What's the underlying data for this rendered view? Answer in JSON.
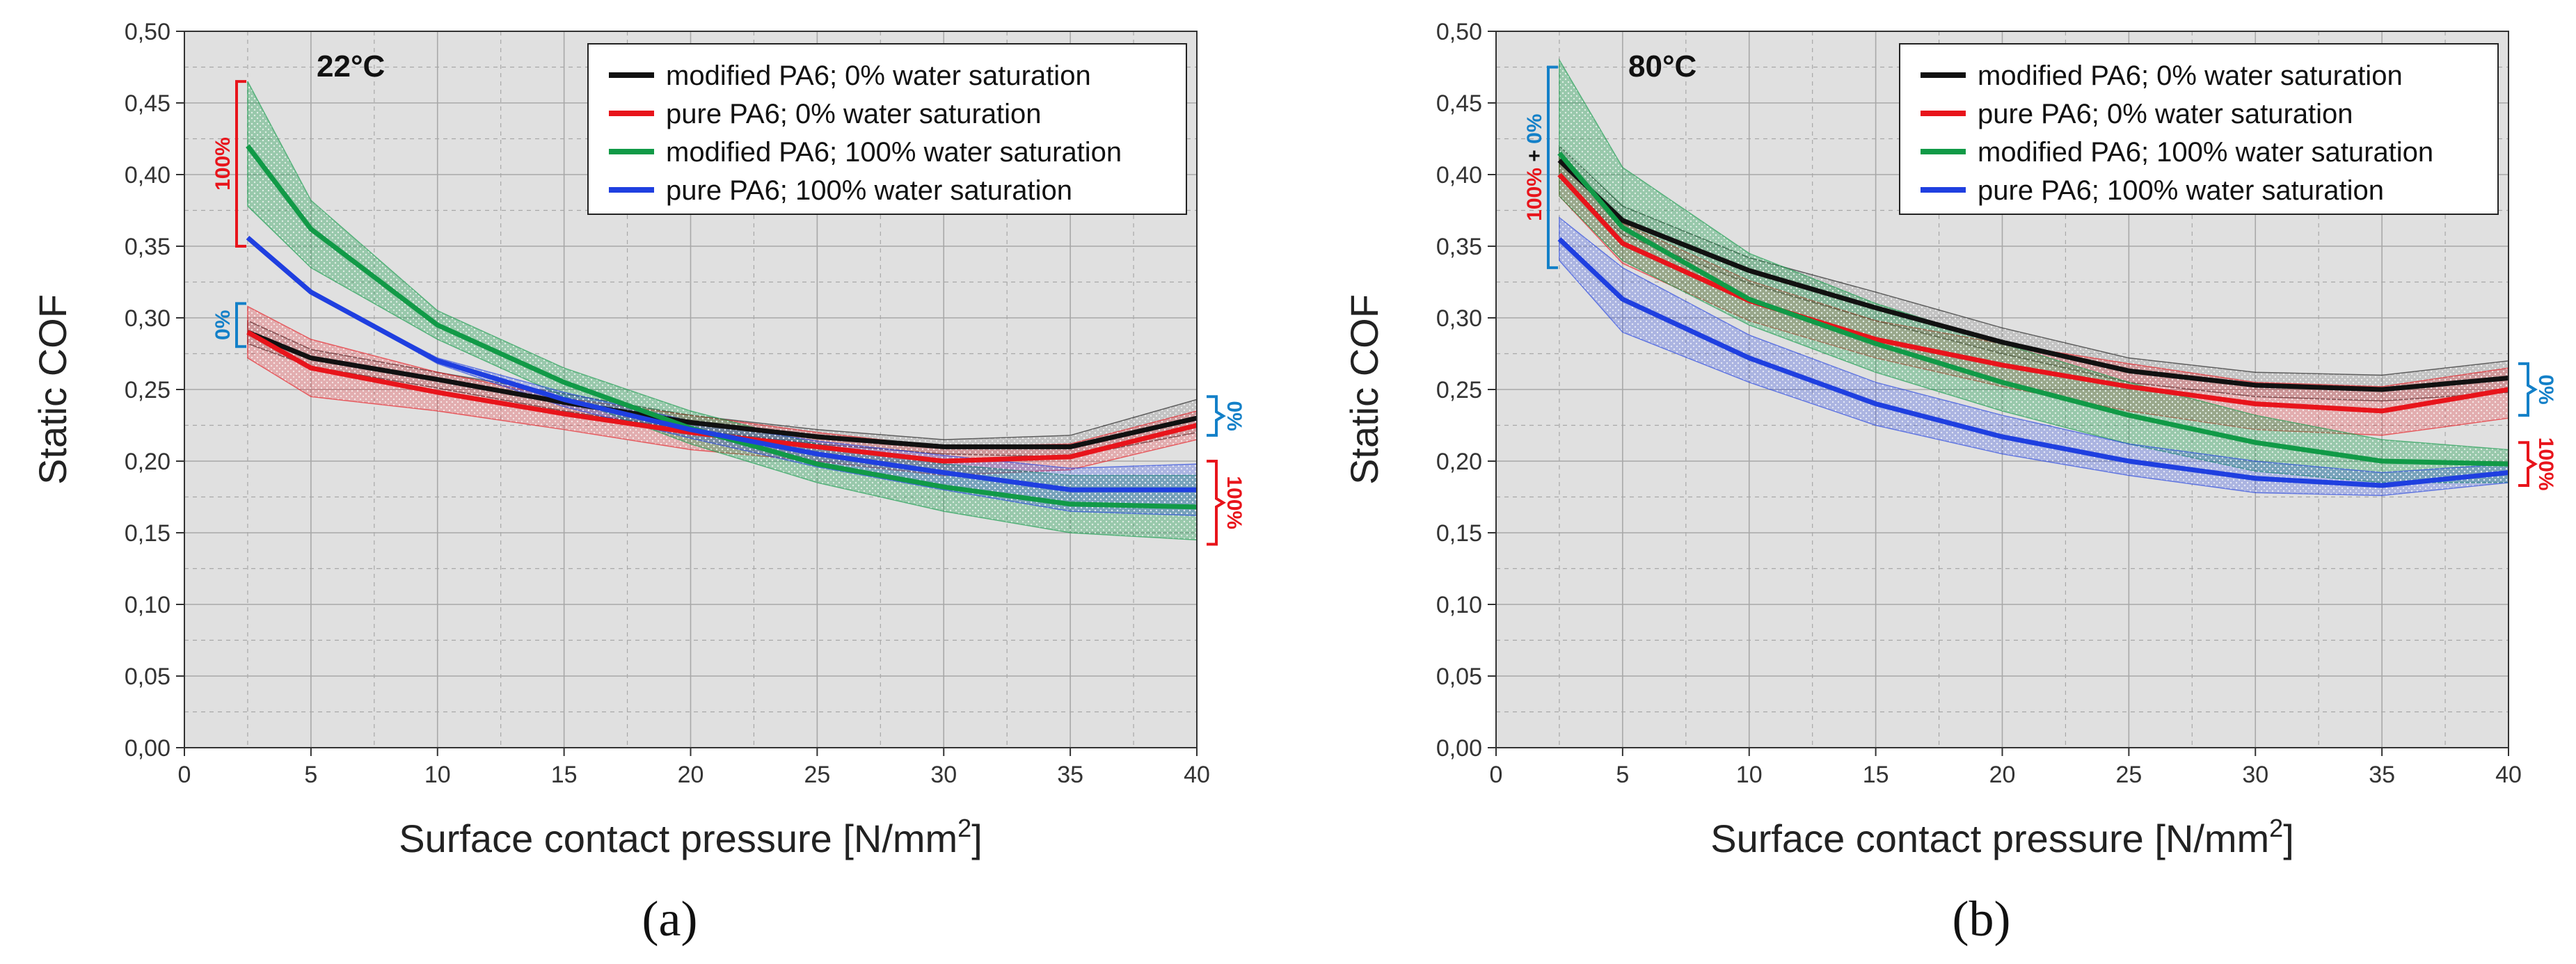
{
  "colors": {
    "black": "#111111",
    "red": "#e8141b",
    "green": "#119a47",
    "blue": "#1f3fe0",
    "bracket_blue": "#1380c8",
    "bracket_red": "#e8141b",
    "plot_bg": "#e0e0e0",
    "grid": "#a8a8a8"
  },
  "chart_data": [
    {
      "type": "line",
      "panel_label": "(a)",
      "temperature": "22°C",
      "xlabel": "Surface contact pressure [N/mm",
      "xlabel_sup": "2",
      "xlabel_end": "]",
      "ylabel": "Static COF",
      "xlim": [
        0,
        40
      ],
      "ylim": [
        0,
        0.5
      ],
      "xticks": [
        "0",
        "5",
        "10",
        "15",
        "20",
        "25",
        "30",
        "35",
        "40"
      ],
      "yticks": [
        "0,00",
        "0,05",
        "0,10",
        "0,15",
        "0,20",
        "0,25",
        "0,30",
        "0,35",
        "0,40",
        "0,45",
        "0,50"
      ],
      "legend": "top-right",
      "series": [
        {
          "name": "modified PA6; 0% water saturation",
          "color": "black",
          "x": [
            2.5,
            5,
            10,
            15,
            20,
            25,
            30,
            35,
            40
          ],
          "values": [
            0.29,
            0.272,
            0.257,
            0.241,
            0.227,
            0.217,
            0.21,
            0.21,
            0.23
          ],
          "lower": [
            0.282,
            0.266,
            0.251,
            0.235,
            0.222,
            0.212,
            0.205,
            0.203,
            0.22
          ],
          "upper": [
            0.298,
            0.278,
            0.262,
            0.247,
            0.232,
            0.222,
            0.215,
            0.218,
            0.243
          ]
        },
        {
          "name": "pure PA6; 0% water saturation",
          "color": "red",
          "x": [
            2.5,
            5,
            10,
            15,
            20,
            25,
            30,
            35,
            40
          ],
          "values": [
            0.29,
            0.265,
            0.248,
            0.233,
            0.22,
            0.21,
            0.2,
            0.203,
            0.225
          ],
          "lower": [
            0.272,
            0.245,
            0.235,
            0.222,
            0.208,
            0.2,
            0.19,
            0.194,
            0.215
          ],
          "upper": [
            0.308,
            0.285,
            0.262,
            0.244,
            0.232,
            0.22,
            0.21,
            0.212,
            0.235
          ]
        },
        {
          "name": "modified PA6; 100% water saturation",
          "color": "green",
          "x": [
            2.5,
            5,
            10,
            15,
            20,
            25,
            30,
            35,
            40
          ],
          "values": [
            0.42,
            0.362,
            0.295,
            0.255,
            0.223,
            0.198,
            0.182,
            0.17,
            0.168
          ],
          "lower": [
            0.378,
            0.335,
            0.285,
            0.245,
            0.212,
            0.185,
            0.165,
            0.15,
            0.145
          ],
          "upper": [
            0.465,
            0.382,
            0.305,
            0.265,
            0.235,
            0.212,
            0.198,
            0.19,
            0.19
          ]
        },
        {
          "name": "pure PA6; 100% water saturation",
          "color": "blue",
          "x": [
            2.5,
            5,
            10,
            15,
            20,
            25,
            30,
            35,
            40
          ],
          "values": [
            0.356,
            0.318,
            0.27,
            0.243,
            0.222,
            0.205,
            0.192,
            0.18,
            0.18
          ],
          "lower": [
            0.356,
            0.318,
            0.268,
            0.238,
            0.216,
            0.196,
            0.18,
            0.165,
            0.162
          ],
          "upper": [
            0.356,
            0.318,
            0.272,
            0.248,
            0.228,
            0.214,
            0.204,
            0.195,
            0.198
          ]
        }
      ],
      "annotations": [
        {
          "text": "100%",
          "side": "left",
          "from": 0.35,
          "to": 0.465,
          "color": "bracket_red"
        },
        {
          "text": "0%",
          "side": "left",
          "from": 0.28,
          "to": 0.31,
          "color": "bracket_blue"
        },
        {
          "text": "0%",
          "side": "right",
          "from": 0.218,
          "to": 0.245,
          "color": "bracket_blue"
        },
        {
          "text": "100%",
          "side": "right",
          "from": 0.142,
          "to": 0.2,
          "color": "bracket_red"
        }
      ]
    },
    {
      "type": "line",
      "panel_label": "(b)",
      "temperature": "80°C",
      "xlabel": "Surface contact pressure [N/mm",
      "xlabel_sup": "2",
      "xlabel_end": "]",
      "ylabel": "Static COF",
      "xlim": [
        0,
        40
      ],
      "ylim": [
        0,
        0.5
      ],
      "xticks": [
        "0",
        "5",
        "10",
        "15",
        "20",
        "25",
        "30",
        "35",
        "40"
      ],
      "yticks": [
        "0,00",
        "0,05",
        "0,10",
        "0,15",
        "0,20",
        "0,25",
        "0,30",
        "0,35",
        "0,40",
        "0,45",
        "0,50"
      ],
      "legend": "top-right",
      "series": [
        {
          "name": "modified PA6; 0% water saturation",
          "color": "black",
          "x": [
            2.5,
            5,
            10,
            15,
            20,
            25,
            30,
            35,
            40
          ],
          "values": [
            0.41,
            0.368,
            0.333,
            0.307,
            0.283,
            0.263,
            0.253,
            0.25,
            0.258
          ],
          "lower": [
            0.398,
            0.358,
            0.324,
            0.298,
            0.275,
            0.255,
            0.245,
            0.242,
            0.248
          ],
          "upper": [
            0.42,
            0.378,
            0.342,
            0.318,
            0.293,
            0.272,
            0.262,
            0.26,
            0.27
          ]
        },
        {
          "name": "pure PA6; 0% water saturation",
          "color": "red",
          "x": [
            2.5,
            5,
            10,
            15,
            20,
            25,
            30,
            35,
            40
          ],
          "values": [
            0.4,
            0.352,
            0.312,
            0.285,
            0.267,
            0.252,
            0.24,
            0.235,
            0.25
          ],
          "lower": [
            0.385,
            0.338,
            0.298,
            0.272,
            0.252,
            0.235,
            0.222,
            0.218,
            0.23
          ],
          "upper": [
            0.415,
            0.366,
            0.326,
            0.298,
            0.282,
            0.268,
            0.255,
            0.252,
            0.265
          ]
        },
        {
          "name": "modified PA6; 100% water saturation",
          "color": "green",
          "x": [
            2.5,
            5,
            10,
            15,
            20,
            25,
            30,
            35,
            40
          ],
          "values": [
            0.415,
            0.363,
            0.313,
            0.282,
            0.255,
            0.232,
            0.213,
            0.2,
            0.198
          ],
          "lower": [
            0.385,
            0.34,
            0.295,
            0.262,
            0.235,
            0.212,
            0.193,
            0.185,
            0.185
          ],
          "upper": [
            0.48,
            0.405,
            0.345,
            0.31,
            0.282,
            0.255,
            0.232,
            0.215,
            0.208
          ]
        },
        {
          "name": "pure PA6; 100% water saturation",
          "color": "blue",
          "x": [
            2.5,
            5,
            10,
            15,
            20,
            25,
            30,
            35,
            40
          ],
          "values": [
            0.355,
            0.313,
            0.272,
            0.24,
            0.217,
            0.2,
            0.188,
            0.183,
            0.192
          ],
          "lower": [
            0.34,
            0.29,
            0.255,
            0.225,
            0.205,
            0.19,
            0.178,
            0.176,
            0.185
          ],
          "upper": [
            0.37,
            0.335,
            0.288,
            0.255,
            0.232,
            0.212,
            0.2,
            0.192,
            0.198
          ]
        }
      ],
      "annotations": [
        {
          "text": "100% + 0%",
          "side": "left",
          "from": 0.335,
          "to": 0.475,
          "color": "bracket_blue",
          "text_parts": [
            "100%",
            " + ",
            "0%"
          ]
        },
        {
          "text": "0%",
          "side": "right",
          "from": 0.232,
          "to": 0.268,
          "color": "bracket_blue"
        },
        {
          "text": "100%",
          "side": "right",
          "from": 0.183,
          "to": 0.213,
          "color": "bracket_red"
        }
      ]
    }
  ]
}
